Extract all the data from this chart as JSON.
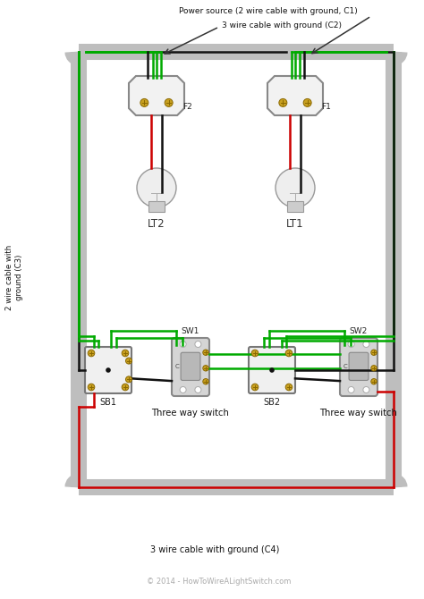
{
  "bg_color": "#ffffff",
  "conduit_color": "#bebebe",
  "wire_black": "#111111",
  "wire_red": "#cc0000",
  "wire_green": "#00aa00",
  "box_fc": "#f2f2f2",
  "box_ec": "#888888",
  "switch_fc": "#d8d8d8",
  "screw_color": "#c8a020",
  "screw_ec": "#8a6800",
  "label_color": "#222222",
  "copyright_color": "#aaaaaa",
  "label_top1": "Power source (2 wire cable with ground, C1)",
  "label_top2": "3 wire cable with ground (C2)",
  "label_left": "2 wire cable with\nground (C3)",
  "label_bottom": "3 wire cable with ground (C4)",
  "label_sw1": "Three way switch",
  "label_sw2": "Three way switch",
  "label_lt1": "LT1",
  "label_lt2": "LT2",
  "label_f1": "F1",
  "label_f2": "F2",
  "label_sb1": "SB1",
  "label_sb2": "SB2",
  "label_sw1name": "SW1",
  "label_sw2name": "SW2",
  "copyright": "© 2014 - HowToWireALightSwitch.com"
}
